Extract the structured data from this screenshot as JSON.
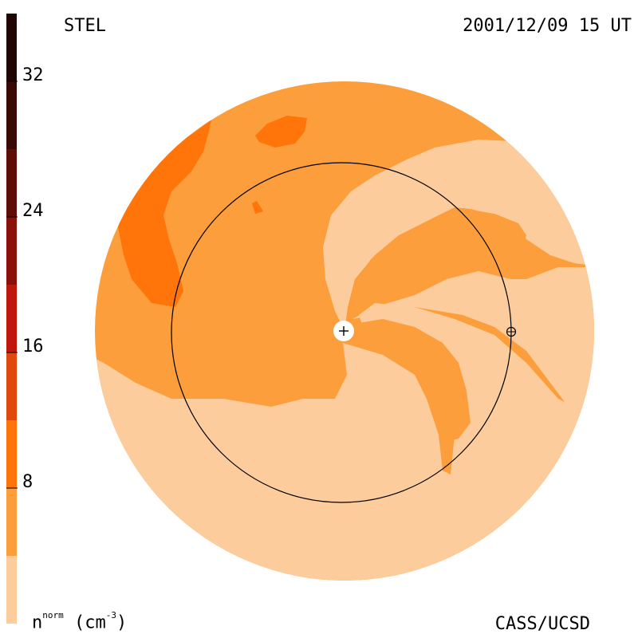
{
  "header": {
    "instrument": "STEL",
    "datetime": "2001/12/09 15 UT"
  },
  "footer": {
    "credit": "CASS/UCSD"
  },
  "colorbar": {
    "unit_base": "n",
    "unit_sup": "norm",
    "unit_rest": "(cm",
    "unit_exp": "-3",
    "unit_close": ")",
    "ticks": [
      "32",
      "24",
      "16",
      "8"
    ],
    "bands": [
      "#1f0504",
      "#4a0a06",
      "#6e0f08",
      "#961209",
      "#c0170c",
      "#e0490b",
      "#ff7509",
      "#fb9e3b",
      "#fccc9c"
    ]
  },
  "map": {
    "colors": {
      "light": "#fccc9c",
      "medium": "#fb9e3b",
      "dark": "#ff7509",
      "darker": "#e0490b"
    },
    "earth_marker": "earth-orbit-symbol",
    "sun_marker": "sun-plus-symbol"
  }
}
